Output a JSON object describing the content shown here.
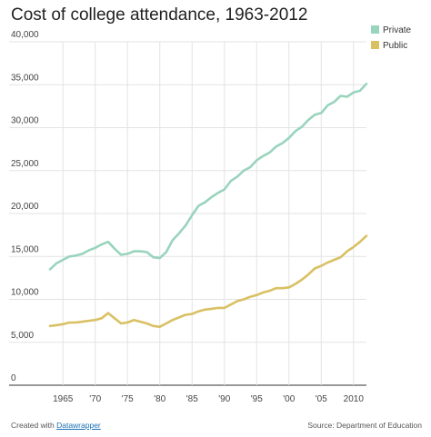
{
  "footer": {
    "created_prefix": "Created with",
    "created_link": "Datawrapper",
    "source": "Source: Department of Education"
  },
  "chart_data": {
    "type": "line",
    "title": "Cost of college attendance, 1963-2012",
    "xlabel": "",
    "ylabel": "",
    "ylim": [
      0,
      40000
    ],
    "xlim": [
      1963,
      2012
    ],
    "y_ticks": [
      0,
      5000,
      10000,
      15000,
      20000,
      25000,
      30000,
      35000,
      40000
    ],
    "y_tick_labels": [
      "0",
      "5,000",
      "10,000",
      "15,000",
      "20,000",
      "25,000",
      "30,000",
      "35,000",
      "40,000"
    ],
    "x_ticks": [
      1965,
      1970,
      1975,
      1980,
      1985,
      1990,
      1995,
      2000,
      2005,
      2010
    ],
    "x_tick_labels": [
      "1965",
      "'70",
      "'75",
      "'80",
      "'85",
      "'90",
      "'95",
      "'00",
      "'05",
      "2010"
    ],
    "grid": true,
    "legend_position": "top-right",
    "x": [
      1963,
      1964,
      1965,
      1966,
      1967,
      1968,
      1969,
      1970,
      1971,
      1972,
      1973,
      1974,
      1975,
      1976,
      1977,
      1978,
      1979,
      1980,
      1981,
      1982,
      1983,
      1984,
      1985,
      1986,
      1987,
      1988,
      1989,
      1990,
      1991,
      1992,
      1993,
      1994,
      1995,
      1996,
      1997,
      1998,
      1999,
      2000,
      2001,
      2002,
      2003,
      2004,
      2005,
      2006,
      2007,
      2008,
      2009,
      2010,
      2011,
      2012
    ],
    "series": [
      {
        "name": "Private",
        "color": "#99d4bd",
        "values": [
          13500,
          14200,
          14600,
          15000,
          15100,
          15300,
          15700,
          16000,
          16400,
          16700,
          15900,
          15200,
          15300,
          15600,
          15600,
          15500,
          14900,
          14800,
          15500,
          16900,
          17700,
          18600,
          19800,
          20900,
          21300,
          21900,
          22400,
          22800,
          23800,
          24300,
          25000,
          25400,
          26200,
          26700,
          27100,
          27800,
          28200,
          28800,
          29600,
          30100,
          30900,
          31500,
          31700,
          32600,
          33000,
          33700,
          33600,
          34100,
          34300,
          35100
        ]
      },
      {
        "name": "Public",
        "color": "#d9c063",
        "values": [
          6900,
          7000,
          7100,
          7300,
          7300,
          7400,
          7500,
          7600,
          7800,
          8400,
          7800,
          7200,
          7300,
          7600,
          7400,
          7200,
          6900,
          6800,
          7200,
          7600,
          7900,
          8200,
          8300,
          8600,
          8800,
          8900,
          9000,
          9000,
          9400,
          9800,
          10000,
          10300,
          10500,
          10800,
          11000,
          11300,
          11300,
          11400,
          11800,
          12300,
          12900,
          13600,
          13900,
          14300,
          14600,
          14900,
          15600,
          16100,
          16700,
          17400
        ]
      }
    ]
  }
}
